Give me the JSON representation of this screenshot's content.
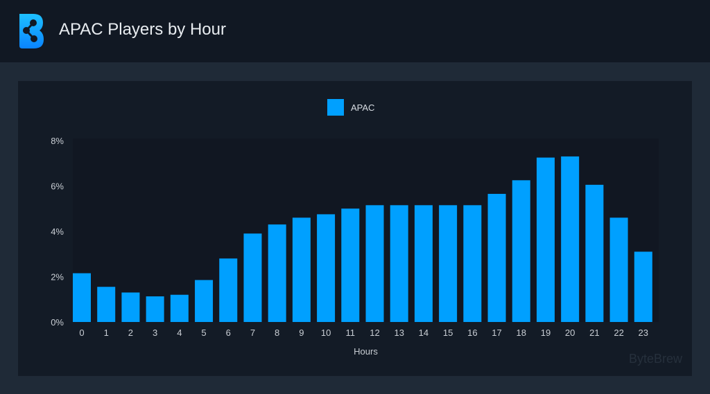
{
  "header": {
    "title": "APAC Players by Hour",
    "logo": "bytebrew-logo"
  },
  "watermark": "ByteBrew",
  "chart_data": {
    "type": "bar",
    "title": "APAC Players by Hour",
    "xlabel": "Hours",
    "ylabel": "",
    "categories": [
      "0",
      "1",
      "2",
      "3",
      "4",
      "5",
      "6",
      "7",
      "8",
      "9",
      "10",
      "11",
      "12",
      "13",
      "14",
      "15",
      "16",
      "17",
      "18",
      "19",
      "20",
      "21",
      "22",
      "23"
    ],
    "series": [
      {
        "name": "APAC",
        "color": "#00a0ff",
        "values": [
          2.15,
          1.55,
          1.3,
          1.13,
          1.2,
          1.85,
          2.8,
          3.9,
          4.3,
          4.6,
          4.75,
          5.0,
          5.15,
          5.15,
          5.15,
          5.15,
          5.15,
          5.65,
          6.25,
          7.25,
          7.3,
          6.05,
          4.6,
          3.1
        ]
      }
    ],
    "ylim": [
      0,
      8
    ],
    "yticks": [
      "0%",
      "2%",
      "4%",
      "6%",
      "8%"
    ],
    "legend": "top-center",
    "grid": false
  }
}
